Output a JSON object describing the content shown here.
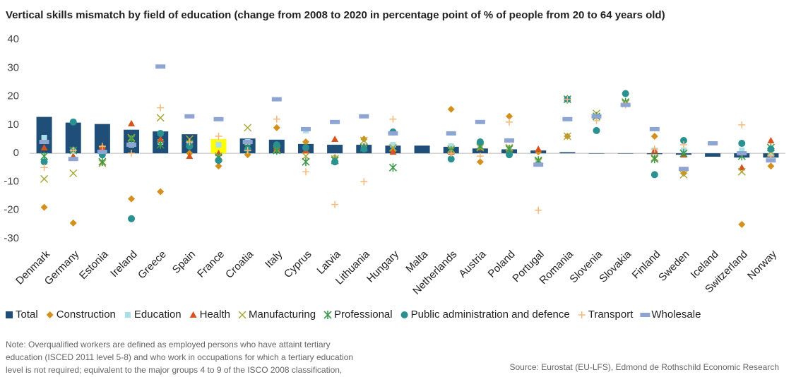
{
  "chart_data": {
    "type": "bar_markers",
    "title": "Vertical skills mismatch by field of education (change from 2008  to 2020  in percentage point of % of people from 20 to 64 years old)",
    "categories": [
      "Denmark",
      "Germany",
      "Estonia",
      "Ireland",
      "Greece",
      "Spain",
      "France",
      "Croatia",
      "Italy",
      "Cyprus",
      "Latvia",
      "Lithuania",
      "Hungary",
      "Malta",
      "Netherlands",
      "Austria",
      "Poland",
      "Portugal",
      "Romania",
      "Slovenia",
      "Slovakia",
      "Finland",
      "Sweden",
      "Iceland",
      "Switzerland",
      "Norway"
    ],
    "ylim": [
      -30,
      40
    ],
    "yticks": [
      -30,
      -20,
      -10,
      0,
      10,
      20,
      30,
      40
    ],
    "grid": false,
    "series": [
      {
        "name": "Total",
        "marker": "bar",
        "color": "#1f4e79",
        "colors": [
          "#1f4e79",
          "#1f4e79",
          "#1f4e79",
          "#1f4e79",
          "#1f4e79",
          "#1f4e79",
          "#ffff00",
          "#1f4e79",
          "#1f4e79",
          "#1f4e79",
          "#1f4e79",
          "#1f4e79",
          "#1f4e79",
          "#1f4e79",
          "#1f4e79",
          "#1f4e79",
          "#1f4e79",
          "#1f4e79",
          "#1f4e79",
          "#1f4e79",
          "#1f4e79",
          "#1f4e79",
          "#1f4e79",
          "#1f4e79",
          "#1f4e79",
          "#1f4e79"
        ],
        "values": [
          12.8,
          10.8,
          10.3,
          8.3,
          7.7,
          6.7,
          5.0,
          5.2,
          4.8,
          3.3,
          3.0,
          3.0,
          2.7,
          2.7,
          2.3,
          1.7,
          1.4,
          1.0,
          0.4,
          0,
          0,
          -0.3,
          -0.5,
          -1.2,
          -1.5,
          -1.5
        ]
      },
      {
        "name": "Construction",
        "marker": "diamond",
        "color": "#d4901c",
        "values": [
          -19,
          -24.5,
          2,
          -16,
          -13.5,
          0,
          -4.5,
          -0.5,
          9,
          4,
          -1.5,
          5,
          1,
          null,
          15.5,
          -3,
          13,
          0.5,
          6,
          13,
          17.5,
          6,
          -7,
          null,
          -25,
          -4.5
        ]
      },
      {
        "name": "Education",
        "marker": "square",
        "color": "#a9dfe8",
        "values": [
          5.5,
          1,
          0.5,
          3,
          4,
          3,
          3,
          4,
          2,
          8,
          -2,
          2.5,
          3,
          null,
          2.5,
          3,
          1,
          -3,
          19,
          null,
          null,
          1,
          1,
          null,
          1,
          0
        ]
      },
      {
        "name": "Health",
        "marker": "triangle",
        "color": "#d9531e",
        "values": [
          2,
          -1,
          2,
          10.5,
          5,
          -1,
          0,
          2,
          2,
          1,
          5,
          2.5,
          0.5,
          null,
          0.5,
          2,
          0.5,
          1.5,
          19,
          null,
          null,
          1,
          -0.5,
          null,
          -5,
          4.5
        ]
      },
      {
        "name": "Manufacturing",
        "marker": "x",
        "color": "#a9a93a",
        "values": [
          -9,
          -7,
          -3.5,
          5.5,
          12.5,
          5,
          -1,
          9,
          1.5,
          -1,
          -2,
          4.5,
          2,
          null,
          1.5,
          2,
          2,
          -3,
          6,
          14,
          17.5,
          -1.5,
          -7.5,
          null,
          -6.5,
          0.5
        ]
      },
      {
        "name": "Professional",
        "marker": "star",
        "color": "#3c9a4a",
        "values": [
          -1,
          1,
          -3,
          5,
          3,
          3.5,
          -1.5,
          2,
          1,
          -3,
          -2.5,
          2,
          -5,
          null,
          1,
          2.5,
          1.5,
          -2.5,
          19,
          13,
          18,
          -2,
          0,
          null,
          -1,
          2
        ]
      },
      {
        "name": "Public administration and defence",
        "marker": "circle",
        "color": "#2a9090",
        "values": [
          -3,
          11,
          -0.5,
          -23,
          7,
          2.5,
          -2.5,
          1.5,
          3,
          2,
          -3,
          1.5,
          7.5,
          null,
          -2,
          4,
          -0.5,
          null,
          19,
          8,
          21,
          -7.5,
          4.5,
          null,
          3.5,
          1.5
        ]
      },
      {
        "name": "Transport",
        "marker": "plus",
        "color": "#f4b97c",
        "values": [
          -5,
          1,
          2.5,
          0,
          16,
          4,
          6,
          1,
          12,
          -6.5,
          -18,
          -10,
          12,
          null,
          0,
          -1,
          11,
          -20,
          19,
          11.5,
          17,
          1.5,
          3,
          null,
          10,
          -1
        ]
      },
      {
        "name": "Wholesale",
        "marker": "dash",
        "color": "#8ea4d2",
        "values": [
          4,
          -2,
          0.5,
          3,
          30.5,
          13,
          12,
          4,
          19,
          8.5,
          11,
          13,
          7,
          null,
          7,
          11,
          4.5,
          -4,
          12,
          13,
          17,
          8.5,
          -5.5,
          3.5,
          0,
          -2.5
        ]
      }
    ],
    "notes": [
      "Note: Overqualified workers are defined as employed persons who have attaint tertiary",
      "education (ISCED 2011 level 5-8) and who work in occupations for which a tertiary education",
      "level is not required; equivalent to the major groups 4 to 9 of the ISCO 2008 classification,"
    ],
    "source": "Source: Eurostat (EU-LFS), Edmond de Rothschild Economic Research"
  }
}
